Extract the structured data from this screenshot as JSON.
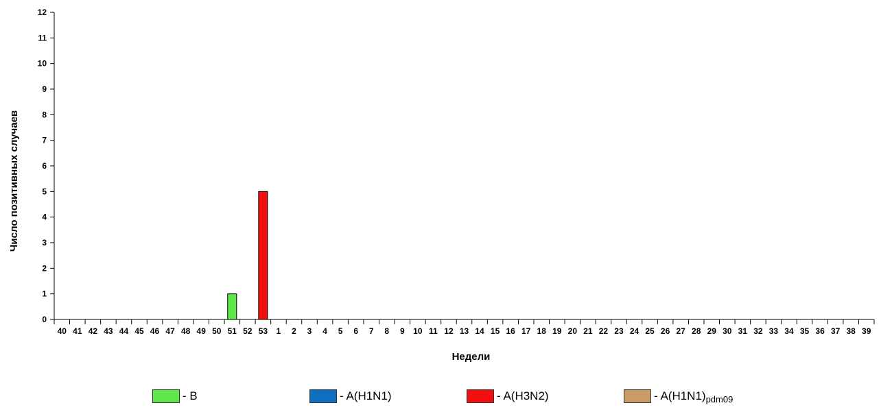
{
  "chart_data": {
    "type": "bar",
    "xlabel": "Недели",
    "ylabel": "Число позитивных случаев",
    "ylim": [
      0,
      12
    ],
    "yticks": [
      0,
      1,
      2,
      3,
      4,
      5,
      6,
      7,
      8,
      9,
      10,
      11,
      12
    ],
    "categories": [
      "40",
      "41",
      "42",
      "43",
      "44",
      "45",
      "46",
      "47",
      "48",
      "49",
      "50",
      "51",
      "52",
      "53",
      "1",
      "2",
      "3",
      "4",
      "5",
      "6",
      "7",
      "8",
      "9",
      "10",
      "11",
      "12",
      "13",
      "14",
      "15",
      "16",
      "17",
      "18",
      "19",
      "20",
      "21",
      "22",
      "23",
      "24",
      "25",
      "26",
      "27",
      "28",
      "29",
      "30",
      "31",
      "32",
      "33",
      "34",
      "35",
      "36",
      "37",
      "38",
      "39"
    ],
    "grid": false,
    "legend_position": "bottom",
    "series": [
      {
        "name": "B",
        "color": "#5ee64a",
        "values": {
          "51": 1
        }
      },
      {
        "name": "A(H1N1)",
        "color": "#0e6fc0",
        "values": {}
      },
      {
        "name": "A(H3N2)",
        "color": "#f20f0f",
        "values": {
          "53": 5
        }
      },
      {
        "name": "A(H1N1)pdm09",
        "color": "#c89b68",
        "values": {}
      }
    ]
  },
  "legend": {
    "items": [
      {
        "prefix": "- ",
        "label": "B",
        "sub": ""
      },
      {
        "prefix": "- ",
        "label": "A(H1N1)",
        "sub": ""
      },
      {
        "prefix": "- ",
        "label": "A(H3N2)",
        "sub": ""
      },
      {
        "prefix": "- ",
        "label": "A(H1N1)",
        "sub": "pdm09"
      }
    ]
  }
}
